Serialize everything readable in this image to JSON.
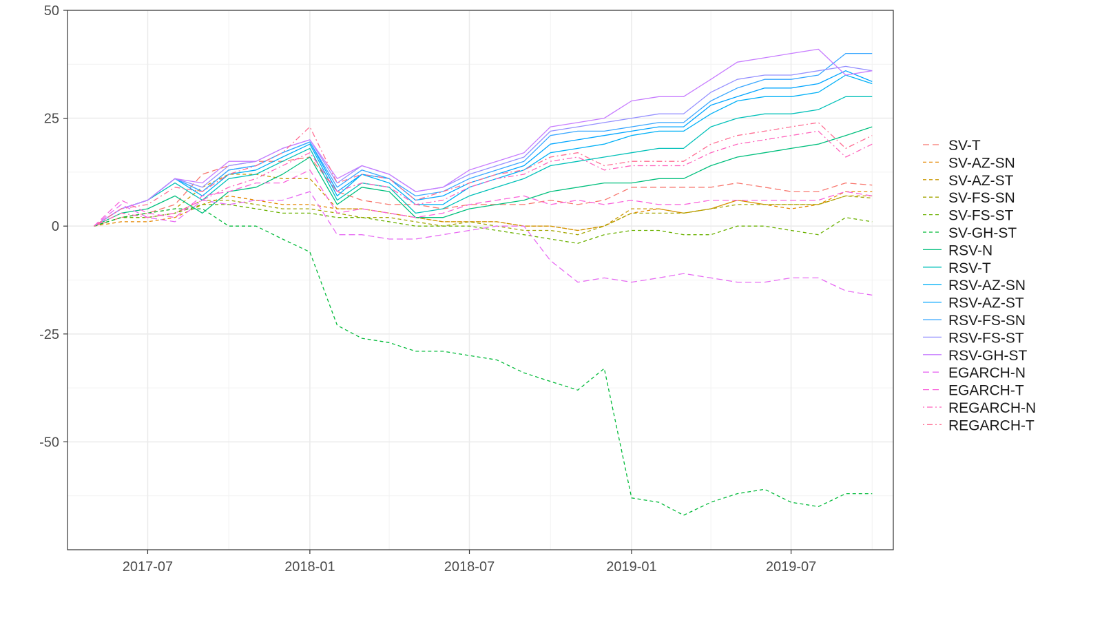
{
  "chart_data": {
    "type": "line",
    "title": "",
    "xlabel": "",
    "ylabel": "",
    "grid": true,
    "legend_position": "right",
    "x_type": "date",
    "xlim": [
      "2017-04-01",
      "2019-10-25"
    ],
    "ylim": [
      -75,
      50
    ],
    "x_ticks": [
      "2017-07",
      "2018-01",
      "2018-07",
      "2019-01",
      "2019-07"
    ],
    "y_ticks": [
      -50,
      -25,
      0,
      25,
      50
    ],
    "dates": [
      "2017-05-01",
      "2017-06-01",
      "2017-07-01",
      "2017-08-01",
      "2017-09-01",
      "2017-10-01",
      "2017-11-01",
      "2017-12-01",
      "2018-01-01",
      "2018-02-01",
      "2018-03-01",
      "2018-04-01",
      "2018-05-01",
      "2018-06-01",
      "2018-07-01",
      "2018-08-01",
      "2018-09-01",
      "2018-10-01",
      "2018-11-01",
      "2018-12-01",
      "2019-01-01",
      "2019-02-01",
      "2019-03-01",
      "2019-04-01",
      "2019-05-01",
      "2019-06-01",
      "2019-07-01",
      "2019-08-01",
      "2019-09-01",
      "2019-10-01"
    ],
    "series": [
      {
        "name": "SV-T",
        "color": "#F8766D",
        "dash": "longdash",
        "values": [
          0,
          2,
          3,
          5,
          12,
          14,
          15,
          15,
          16,
          8,
          6,
          5,
          5,
          4,
          5,
          5,
          5,
          6,
          5,
          6,
          9,
          9,
          9,
          9,
          10,
          9,
          8,
          8,
          10,
          9.5
        ]
      },
      {
        "name": "SV-AZ-SN",
        "color": "#E58700",
        "dash": "dashed",
        "values": [
          0,
          1,
          1,
          2,
          5,
          7,
          6,
          5,
          5,
          4,
          4,
          3,
          2,
          1,
          1,
          1,
          0,
          0,
          -1,
          0,
          3,
          4,
          3,
          4,
          6,
          5,
          4,
          5,
          8,
          8
        ]
      },
      {
        "name": "SV-AZ-ST",
        "color": "#C99800",
        "dash": "dashed",
        "values": [
          0,
          2,
          3,
          4,
          9,
          12,
          12,
          11,
          11,
          4,
          4,
          3,
          2,
          1,
          1,
          1,
          0,
          0,
          -1,
          0,
          4,
          4,
          3,
          4,
          6,
          5,
          5,
          5,
          7,
          7
        ]
      },
      {
        "name": "SV-FS-SN",
        "color": "#A3A500",
        "dash": "dashed",
        "values": [
          0,
          2,
          2,
          3,
          6,
          6,
          5,
          4,
          4,
          3,
          2,
          2,
          1,
          0,
          1,
          0,
          -1,
          -1,
          -2,
          0,
          3,
          3,
          3,
          4,
          5,
          5,
          5,
          5,
          7,
          6.5
        ]
      },
      {
        "name": "SV-FS-ST",
        "color": "#6BB100",
        "dash": "dashed",
        "values": [
          0,
          2,
          2,
          3,
          5,
          5,
          4,
          3,
          3,
          2,
          2,
          1,
          0,
          0,
          0,
          -1,
          -2,
          -3,
          -4,
          -2,
          -1,
          -1,
          -2,
          -2,
          0,
          0,
          -1,
          -2,
          2,
          1
        ]
      },
      {
        "name": "SV-GH-ST",
        "color": "#00BA38",
        "dash": "dashed",
        "values": [
          0,
          2,
          3,
          4,
          4,
          0,
          0,
          -3,
          -6,
          -23,
          -26,
          -27,
          -29,
          -29,
          -30,
          -31,
          -34,
          -36,
          -38,
          -33,
          -63,
          -64,
          -67,
          -64,
          -62,
          -61,
          -64,
          -65,
          -62,
          -62
        ]
      },
      {
        "name": "RSV-N",
        "color": "#00BF7D",
        "dash": "solid",
        "values": [
          0,
          3,
          4,
          7,
          3,
          8,
          9,
          12,
          16,
          5,
          9,
          8,
          2,
          2,
          4,
          5,
          6,
          8,
          9,
          10,
          10,
          11,
          11,
          14,
          16,
          17,
          18,
          19,
          21,
          23
        ]
      },
      {
        "name": "RSV-T",
        "color": "#00C0B8",
        "dash": "solid",
        "values": [
          0,
          4,
          6,
          10,
          6,
          11,
          12,
          15,
          18,
          6,
          10,
          9,
          3,
          4,
          7,
          9,
          11,
          14,
          15,
          16,
          17,
          18,
          18,
          23,
          25,
          26,
          26,
          27,
          30,
          30
        ]
      },
      {
        "name": "RSV-AZ-SN",
        "color": "#00B0F6",
        "dash": "solid",
        "values": [
          0,
          4,
          6,
          11,
          7,
          12,
          13,
          16,
          19,
          7,
          12,
          10,
          5,
          5,
          9,
          11,
          13,
          17,
          18,
          19,
          21,
          22,
          22,
          26,
          29,
          30,
          30,
          31,
          35,
          33
        ]
      },
      {
        "name": "RSV-AZ-ST",
        "color": "#00A5FF",
        "dash": "solid",
        "values": [
          0,
          4,
          6,
          11,
          8,
          13,
          14,
          17,
          19.5,
          8,
          12,
          11,
          6,
          7,
          10,
          12,
          14,
          19,
          20,
          21,
          22,
          23,
          23,
          28,
          30,
          32,
          32,
          33,
          36,
          33.5
        ]
      },
      {
        "name": "RSV-FS-SN",
        "color": "#39A7FF",
        "dash": "solid",
        "values": [
          0,
          4,
          6,
          11,
          8,
          13,
          14,
          17,
          19.5,
          9,
          13,
          11,
          7,
          8,
          11,
          13,
          15,
          21,
          22,
          22,
          23,
          24,
          24,
          29,
          32,
          34,
          34,
          35,
          40,
          40
        ]
      },
      {
        "name": "RSV-FS-ST",
        "color": "#9590FF",
        "dash": "solid",
        "values": [
          0,
          4,
          6,
          11,
          9,
          14,
          15,
          18,
          20,
          10,
          14,
          12,
          8,
          9,
          12,
          14,
          16,
          22,
          23,
          24,
          25,
          26,
          26,
          31,
          34,
          35,
          35,
          36,
          37,
          36
        ]
      },
      {
        "name": "RSV-GH-ST",
        "color": "#C77CFF",
        "dash": "solid",
        "values": [
          0,
          4,
          6,
          11,
          10,
          15,
          15,
          18,
          20,
          11,
          14,
          12,
          8,
          9,
          13,
          15,
          17,
          23,
          24,
          25,
          29,
          30,
          30,
          34,
          38,
          39,
          40,
          41,
          35,
          36
        ]
      },
      {
        "name": "EGARCH-N",
        "color": "#E76BF3",
        "dash": "longdash",
        "values": [
          0,
          5,
          2,
          1,
          6,
          5,
          6,
          6,
          8,
          -2,
          -2,
          -3,
          -3,
          -2,
          -1,
          0,
          0,
          -8,
          -13,
          -12,
          -13,
          -12,
          -11,
          -12,
          -13,
          -13,
          -12,
          -12,
          -15,
          -16
        ]
      },
      {
        "name": "EGARCH-T",
        "color": "#FA62DB",
        "dash": "longdash",
        "values": [
          0,
          6,
          3,
          2,
          7,
          8,
          10,
          10,
          13,
          3,
          4,
          3,
          2,
          3,
          5,
          6,
          7,
          5,
          6,
          5,
          6,
          5,
          5,
          6,
          6,
          6,
          6,
          6,
          8,
          7
        ]
      },
      {
        "name": "REGARCH-N",
        "color": "#FF62BC",
        "dash": "dotdash",
        "values": [
          0,
          3,
          2,
          3,
          6,
          9,
          11,
          14,
          17,
          8,
          10,
          9,
          5,
          6,
          9,
          11,
          12,
          15,
          16,
          13,
          14,
          14,
          14,
          17,
          19,
          20,
          21,
          22,
          16,
          19
        ]
      },
      {
        "name": "REGARCH-T",
        "color": "#FF6C91",
        "dash": "dotdash",
        "values": [
          0,
          4,
          5,
          9,
          8,
          12,
          14,
          17,
          23,
          10,
          12,
          11,
          6,
          8,
          10,
          12,
          13,
          16,
          17,
          14,
          15,
          15,
          15,
          19,
          21,
          22,
          23,
          24,
          18,
          21
        ]
      }
    ]
  }
}
